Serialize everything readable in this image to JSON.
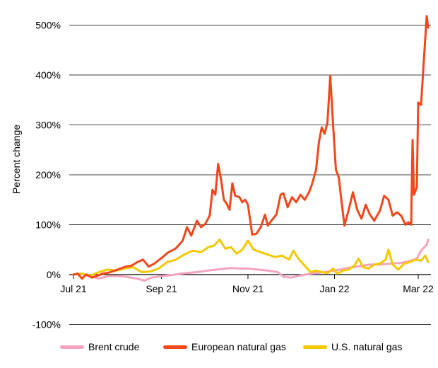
{
  "chart_data": {
    "type": "line",
    "title": "",
    "ylabel": "Percent change",
    "xlabel": "",
    "ylim": [
      -100,
      520
    ],
    "y_ticks": [
      {
        "value": 500,
        "label": "500%"
      },
      {
        "value": 400,
        "label": "400%"
      },
      {
        "value": 300,
        "label": "300%"
      },
      {
        "value": 200,
        "label": "200%"
      },
      {
        "value": 100,
        "label": "100%"
      },
      {
        "value": 0,
        "label": "0%"
      },
      {
        "value": -100,
        "label": "-100%"
      }
    ],
    "x_range": [
      "2021-07-01",
      "2022-03-08"
    ],
    "x_ticks": [
      {
        "date": "2021-07-01",
        "label": "Jul 21"
      },
      {
        "date": "2021-09-01",
        "label": "Sep 21"
      },
      {
        "date": "2021-11-01",
        "label": "Nov 21"
      },
      {
        "date": "2022-01-01",
        "label": "Jan 22"
      },
      {
        "date": "2022-03-01",
        "label": "Mar 22"
      }
    ],
    "grid": "horizontal",
    "legend_position": "bottom",
    "series": [
      {
        "name": "Brent crude",
        "color": "#f4a3bd",
        "points": [
          [
            "2021-07-01",
            0
          ],
          [
            "2021-07-06",
            2
          ],
          [
            "2021-07-12",
            -2
          ],
          [
            "2021-07-19",
            -8
          ],
          [
            "2021-07-26",
            -3
          ],
          [
            "2021-08-02",
            -3
          ],
          [
            "2021-08-09",
            -5
          ],
          [
            "2021-08-16",
            -9
          ],
          [
            "2021-08-20",
            -12
          ],
          [
            "2021-08-25",
            -6
          ],
          [
            "2021-09-01",
            -3
          ],
          [
            "2021-09-08",
            -1
          ],
          [
            "2021-09-15",
            2
          ],
          [
            "2021-09-22",
            4
          ],
          [
            "2021-09-29",
            6
          ],
          [
            "2021-10-06",
            9
          ],
          [
            "2021-10-13",
            11
          ],
          [
            "2021-10-20",
            13
          ],
          [
            "2021-10-27",
            12
          ],
          [
            "2021-11-01",
            12
          ],
          [
            "2021-11-08",
            10
          ],
          [
            "2021-11-15",
            8
          ],
          [
            "2021-11-22",
            5
          ],
          [
            "2021-11-26",
            -4
          ],
          [
            "2021-12-01",
            -6
          ],
          [
            "2021-12-08",
            -2
          ],
          [
            "2021-12-15",
            2
          ],
          [
            "2021-12-22",
            4
          ],
          [
            "2021-12-29",
            7
          ],
          [
            "2022-01-05",
            10
          ],
          [
            "2022-01-12",
            14
          ],
          [
            "2022-01-19",
            17
          ],
          [
            "2022-01-26",
            20
          ],
          [
            "2022-02-02",
            20
          ],
          [
            "2022-02-09",
            22
          ],
          [
            "2022-02-16",
            23
          ],
          [
            "2022-02-23",
            27
          ],
          [
            "2022-02-28",
            32
          ],
          [
            "2022-03-03",
            48
          ],
          [
            "2022-03-07",
            60
          ],
          [
            "2022-03-08",
            70
          ]
        ]
      },
      {
        "name": "European natural gas",
        "color": "#f2461c",
        "points": [
          [
            "2021-07-01",
            0
          ],
          [
            "2021-07-04",
            2
          ],
          [
            "2021-07-07",
            -8
          ],
          [
            "2021-07-10",
            0
          ],
          [
            "2021-07-14",
            -6
          ],
          [
            "2021-07-18",
            -2
          ],
          [
            "2021-07-22",
            2
          ],
          [
            "2021-07-26",
            4
          ],
          [
            "2021-07-30",
            8
          ],
          [
            "2021-08-03",
            12
          ],
          [
            "2021-08-07",
            16
          ],
          [
            "2021-08-11",
            18
          ],
          [
            "2021-08-15",
            25
          ],
          [
            "2021-08-19",
            30
          ],
          [
            "2021-08-23",
            16
          ],
          [
            "2021-08-27",
            22
          ],
          [
            "2021-09-01",
            33
          ],
          [
            "2021-09-06",
            45
          ],
          [
            "2021-09-11",
            52
          ],
          [
            "2021-09-16",
            68
          ],
          [
            "2021-09-19",
            95
          ],
          [
            "2021-09-22",
            78
          ],
          [
            "2021-09-26",
            108
          ],
          [
            "2021-09-29",
            95
          ],
          [
            "2021-10-02",
            102
          ],
          [
            "2021-10-05",
            118
          ],
          [
            "2021-10-07",
            170
          ],
          [
            "2021-10-09",
            160
          ],
          [
            "2021-10-11",
            222
          ],
          [
            "2021-10-13",
            190
          ],
          [
            "2021-10-15",
            150
          ],
          [
            "2021-10-17",
            142
          ],
          [
            "2021-10-19",
            130
          ],
          [
            "2021-10-21",
            183
          ],
          [
            "2021-10-23",
            158
          ],
          [
            "2021-10-26",
            155
          ],
          [
            "2021-10-28",
            145
          ],
          [
            "2021-10-30",
            150
          ],
          [
            "2021-11-01",
            140
          ],
          [
            "2021-11-04",
            80
          ],
          [
            "2021-11-07",
            82
          ],
          [
            "2021-11-10",
            95
          ],
          [
            "2021-11-13",
            120
          ],
          [
            "2021-11-15",
            98
          ],
          [
            "2021-11-18",
            110
          ],
          [
            "2021-11-21",
            120
          ],
          [
            "2021-11-24",
            160
          ],
          [
            "2021-11-26",
            163
          ],
          [
            "2021-11-29",
            135
          ],
          [
            "2021-12-02",
            155
          ],
          [
            "2021-12-05",
            145
          ],
          [
            "2021-12-08",
            160
          ],
          [
            "2021-12-11",
            150
          ],
          [
            "2021-12-14",
            165
          ],
          [
            "2021-12-16",
            180
          ],
          [
            "2021-12-19",
            210
          ],
          [
            "2021-12-21",
            265
          ],
          [
            "2021-12-23",
            295
          ],
          [
            "2021-12-25",
            282
          ],
          [
            "2021-12-27",
            305
          ],
          [
            "2021-12-29",
            398
          ],
          [
            "2021-12-31",
            300
          ],
          [
            "2022-01-02",
            210
          ],
          [
            "2022-01-04",
            195
          ],
          [
            "2022-01-06",
            145
          ],
          [
            "2022-01-08",
            98
          ],
          [
            "2022-01-11",
            130
          ],
          [
            "2022-01-14",
            165
          ],
          [
            "2022-01-17",
            130
          ],
          [
            "2022-01-20",
            112
          ],
          [
            "2022-01-23",
            140
          ],
          [
            "2022-01-26",
            120
          ],
          [
            "2022-01-29",
            108
          ],
          [
            "2022-02-02",
            128
          ],
          [
            "2022-02-05",
            158
          ],
          [
            "2022-02-08",
            150
          ],
          [
            "2022-02-11",
            118
          ],
          [
            "2022-02-14",
            125
          ],
          [
            "2022-02-17",
            118
          ],
          [
            "2022-02-20",
            100
          ],
          [
            "2022-02-22",
            105
          ],
          [
            "2022-02-24",
            100
          ],
          [
            "2022-02-25",
            270
          ],
          [
            "2022-02-26",
            160
          ],
          [
            "2022-02-28",
            175
          ],
          [
            "2022-03-01",
            345
          ],
          [
            "2022-03-03",
            340
          ],
          [
            "2022-03-05",
            430
          ],
          [
            "2022-03-07",
            518
          ],
          [
            "2022-03-08",
            495
          ]
        ]
      },
      {
        "name": "U.S. natural gas",
        "color": "#f5c800",
        "points": [
          [
            "2021-07-01",
            0
          ],
          [
            "2021-07-07",
            2
          ],
          [
            "2021-07-13",
            -2
          ],
          [
            "2021-07-19",
            5
          ],
          [
            "2021-07-25",
            10
          ],
          [
            "2021-07-31",
            8
          ],
          [
            "2021-08-06",
            12
          ],
          [
            "2021-08-12",
            15
          ],
          [
            "2021-08-18",
            5
          ],
          [
            "2021-08-24",
            6
          ],
          [
            "2021-08-30",
            12
          ],
          [
            "2021-09-05",
            25
          ],
          [
            "2021-09-11",
            30
          ],
          [
            "2021-09-17",
            40
          ],
          [
            "2021-09-23",
            48
          ],
          [
            "2021-09-29",
            45
          ],
          [
            "2021-10-04",
            55
          ],
          [
            "2021-10-08",
            58
          ],
          [
            "2021-10-12",
            70
          ],
          [
            "2021-10-16",
            52
          ],
          [
            "2021-10-20",
            55
          ],
          [
            "2021-10-24",
            42
          ],
          [
            "2021-10-28",
            50
          ],
          [
            "2021-11-01",
            68
          ],
          [
            "2021-11-05",
            50
          ],
          [
            "2021-11-10",
            45
          ],
          [
            "2021-11-15",
            40
          ],
          [
            "2021-11-20",
            35
          ],
          [
            "2021-11-25",
            38
          ],
          [
            "2021-11-30",
            30
          ],
          [
            "2021-12-03",
            48
          ],
          [
            "2021-12-07",
            30
          ],
          [
            "2021-12-11",
            18
          ],
          [
            "2021-12-15",
            5
          ],
          [
            "2021-12-19",
            8
          ],
          [
            "2021-12-23",
            5
          ],
          [
            "2021-12-27",
            3
          ],
          [
            "2021-12-31",
            12
          ],
          [
            "2022-01-03",
            2
          ],
          [
            "2022-01-07",
            8
          ],
          [
            "2022-01-11",
            10
          ],
          [
            "2022-01-15",
            18
          ],
          [
            "2022-01-18",
            32
          ],
          [
            "2022-01-21",
            15
          ],
          [
            "2022-01-25",
            12
          ],
          [
            "2022-01-29",
            20
          ],
          [
            "2022-02-02",
            22
          ],
          [
            "2022-02-06",
            30
          ],
          [
            "2022-02-08",
            50
          ],
          [
            "2022-02-11",
            20
          ],
          [
            "2022-02-15",
            10
          ],
          [
            "2022-02-19",
            22
          ],
          [
            "2022-02-23",
            25
          ],
          [
            "2022-02-27",
            30
          ],
          [
            "2022-03-03",
            28
          ],
          [
            "2022-03-06",
            38
          ],
          [
            "2022-03-08",
            25
          ]
        ]
      }
    ]
  }
}
